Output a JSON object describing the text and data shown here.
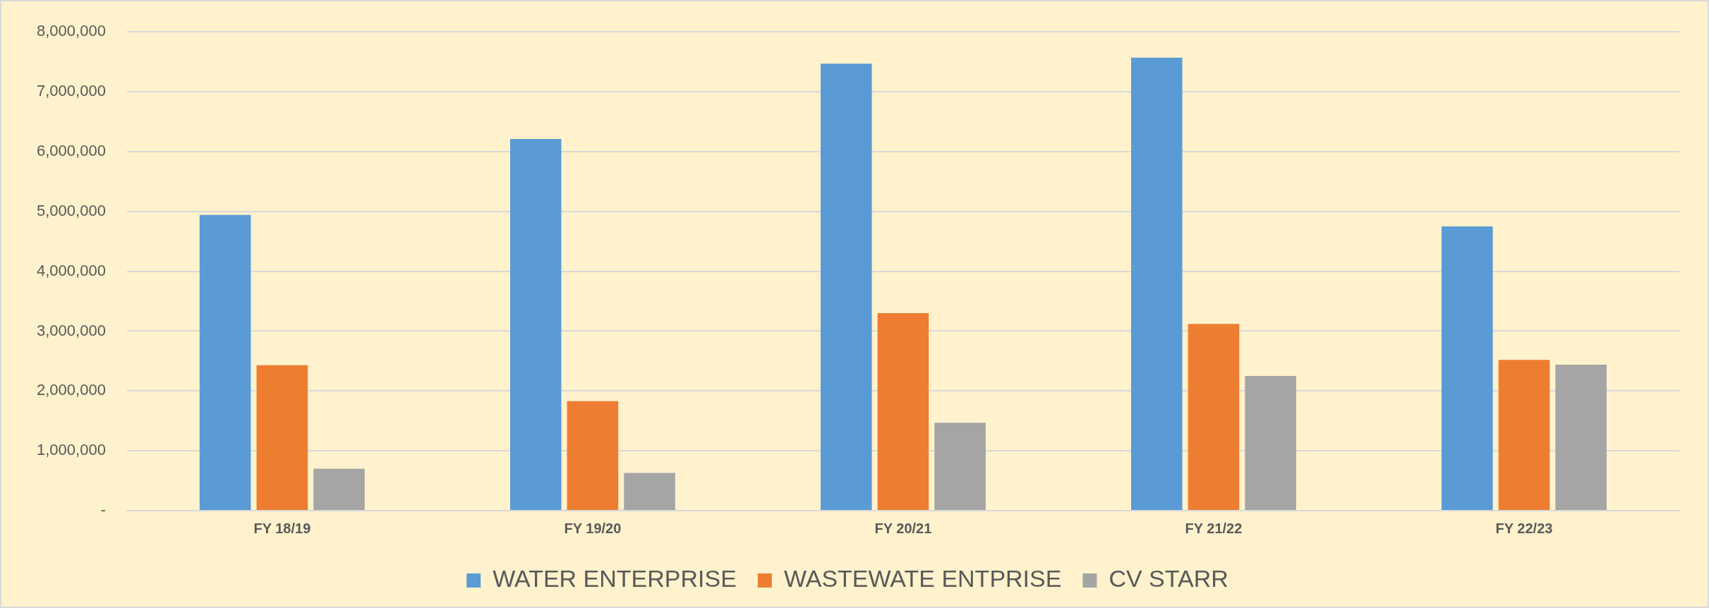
{
  "chart_data": {
    "type": "bar",
    "categories": [
      "FY 18/19",
      "FY 19/20",
      "FY 20/21",
      "FY 21/22",
      "FY 22/23"
    ],
    "series": [
      {
        "name": "WATER ENTERPRISE",
        "color": "#5b9bd5",
        "values": [
          4940000,
          6210000,
          7470000,
          7570000,
          4750000
        ]
      },
      {
        "name": "WASTEWATE ENTPRISE",
        "color": "#ed7d31",
        "values": [
          2430000,
          1830000,
          3300000,
          3120000,
          2520000
        ]
      },
      {
        "name": "CV STARR",
        "color": "#a5a5a5",
        "values": [
          700000,
          630000,
          1470000,
          2250000,
          2440000
        ]
      }
    ],
    "ylim": [
      0,
      8000000
    ],
    "yticks": [
      {
        "value": 0,
        "label": "-"
      },
      {
        "value": 1000000,
        "label": "1,000,000"
      },
      {
        "value": 2000000,
        "label": "2,000,000"
      },
      {
        "value": 3000000,
        "label": "3,000,000"
      },
      {
        "value": 4000000,
        "label": "4,000,000"
      },
      {
        "value": 5000000,
        "label": "5,000,000"
      },
      {
        "value": 6000000,
        "label": "6,000,000"
      },
      {
        "value": 7000000,
        "label": "7,000,000"
      },
      {
        "value": 8000000,
        "label": "8,000,000"
      }
    ],
    "grid": "y",
    "legend": "bottom"
  }
}
